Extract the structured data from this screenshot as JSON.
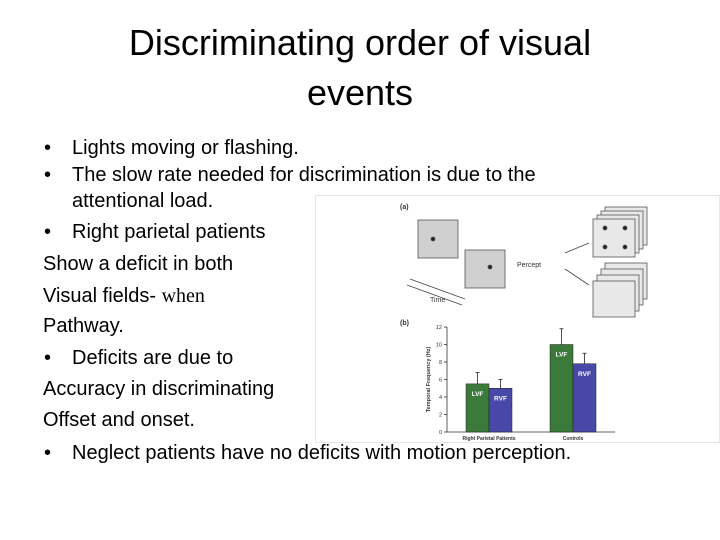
{
  "title": "Discriminating order of visual events",
  "body": {
    "bullet": "•",
    "lines": [
      "Lights moving or flashing.",
      "The slow rate needed for discrimination is due to the",
      "attentional load.",
      "Right parietal patients",
      "Show a deficit in both",
      "Visual fields-",
      "when",
      "Pathway.",
      "Deficits are due to",
      "Accuracy in discriminating",
      "Offset and onset.",
      "Neglect patients have no deficits with motion perception."
    ]
  },
  "figure": {
    "panel_a": "(a)",
    "panel_b": "(b)",
    "percept": "Percept",
    "time": "Time"
  },
  "chart_data": {
    "type": "bar",
    "y_label": "Temporal Frequency (Hz)",
    "categories": [
      "Right Parietal Patients",
      "Controls"
    ],
    "series": [
      {
        "name": "LVF",
        "color": "#3b7a3b",
        "values": [
          5.5,
          10
        ],
        "errors": [
          1.3,
          1.8
        ]
      },
      {
        "name": "RVF",
        "color": "#4848a8",
        "values": [
          5,
          7.8
        ],
        "errors": [
          1,
          1.2
        ]
      }
    ],
    "ylim": [
      0,
      12
    ],
    "yticks": [
      0,
      2,
      4,
      6,
      8,
      10,
      12
    ]
  }
}
